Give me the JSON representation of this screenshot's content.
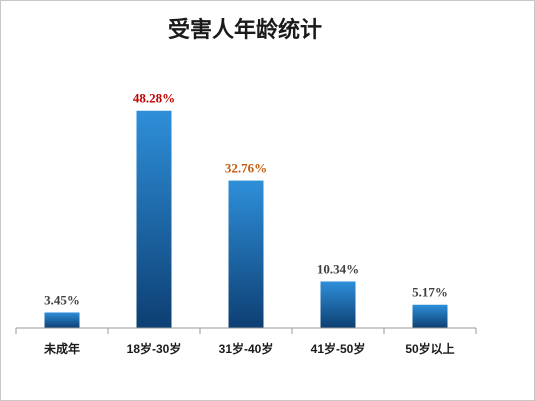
{
  "chart_data": {
    "type": "bar",
    "title": "受害人年龄统计",
    "categories": [
      "未成年",
      "18岁-30岁",
      "31岁-40岁",
      "41岁-50岁",
      "50岁以上"
    ],
    "values": [
      3.45,
      48.28,
      32.76,
      10.34,
      5.17
    ],
    "data_labels": [
      "3.45%",
      "48.28%",
      "32.76%",
      "10.34%",
      "5.17%"
    ],
    "label_colors": [
      "#404040",
      "#c00000",
      "#c55a11",
      "#404040",
      "#404040"
    ],
    "bar_color_top": "#2e8fd9",
    "bar_color_bottom": "#0d3f73",
    "ylim": [
      0,
      55
    ],
    "grid": false,
    "legend": "none",
    "xlabel": "",
    "ylabel": ""
  }
}
